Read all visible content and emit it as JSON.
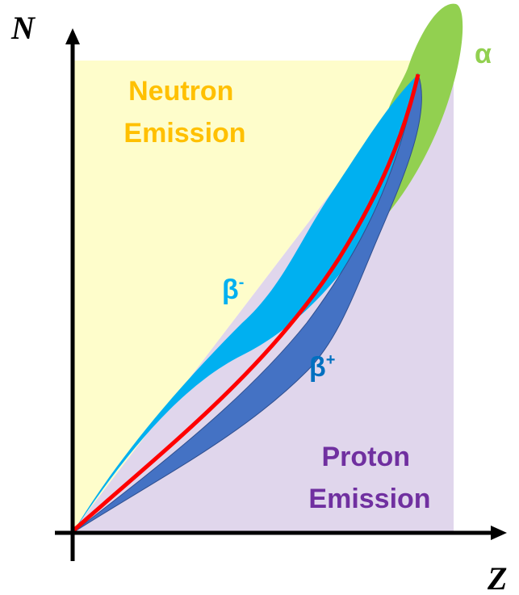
{
  "axes": {
    "y_label": "N",
    "x_label": "Z"
  },
  "regions": {
    "neutron_emission": [
      "Neutron",
      "Emission"
    ],
    "proton_emission": [
      "Proton",
      "Emission"
    ],
    "beta_minus": {
      "base": "β",
      "sup": "-"
    },
    "beta_plus": {
      "base": "β",
      "sup": "+"
    },
    "alpha": "α"
  }
}
